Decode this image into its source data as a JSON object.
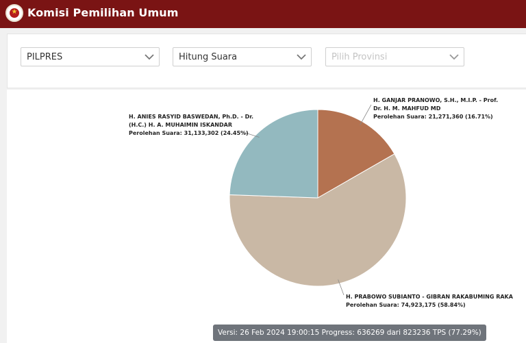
{
  "header": {
    "title": "Komisi Pemilihan Umum",
    "logo_icon": "kpu-logo-icon",
    "bg_color": "#7a1414"
  },
  "filters": {
    "election_type": {
      "value": "PILPRES",
      "icon": "chevron-down-icon"
    },
    "mode": {
      "value": "Hitung Suara",
      "icon": "chevron-down-icon"
    },
    "province": {
      "placeholder": "Pilih Provinsi",
      "icon": "chevron-down-icon"
    }
  },
  "chart_data": {
    "type": "pie",
    "slices": [
      {
        "name_line1": "H. GANJAR PRANOWO, S.H., M.I.P. - Prof.",
        "name_line2": "Dr. H. M. MAHFUD MD",
        "votes_label": "Perolehan Suara: 21,271,360 (16.71%)",
        "votes": 21271360,
        "percent": 16.71,
        "color": "#b47250"
      },
      {
        "name_line1": "H. PRABOWO SUBIANTO - GIBRAN RAKABUMING RAKA",
        "votes_label": "Perolehan Suara: 74,923,175 (58.84%)",
        "votes": 74923175,
        "percent": 58.84,
        "color": "#c9b8a5"
      },
      {
        "name_line1": "H. ANIES RASYID BASWEDAN, Ph.D. - Dr.",
        "name_line2": "(H.C.) H. A. MUHAIMIN ISKANDAR",
        "votes_label": "Perolehan Suara: 31,133,302 (24.45%)",
        "votes": 31133302,
        "percent": 24.45,
        "color": "#93b9bf"
      }
    ]
  },
  "status": {
    "text": "Versi: 26 Feb 2024 19:00:15 Progress: 636269 dari 823236 TPS (77.29%)"
  }
}
